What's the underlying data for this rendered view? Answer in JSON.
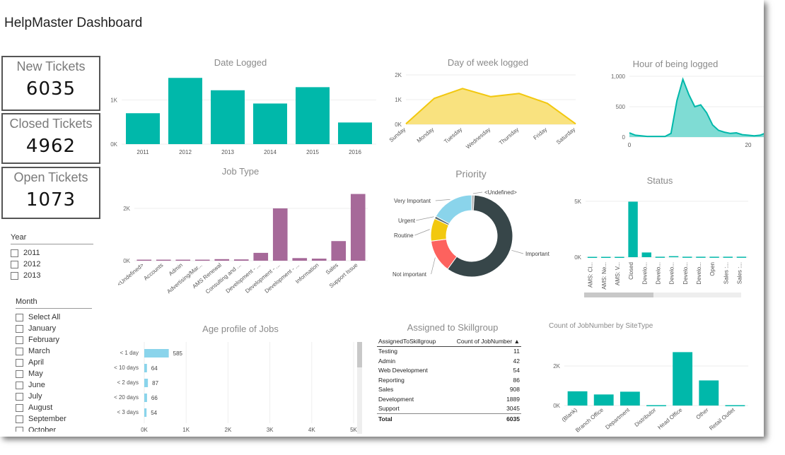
{
  "dashboard": {
    "title": "HelpMaster Dashboard"
  },
  "cards": [
    {
      "label": "New Tickets",
      "value": "6035"
    },
    {
      "label": "Closed Tickets",
      "value": "4962"
    },
    {
      "label": "Open Tickets",
      "value": "1073"
    }
  ],
  "year_slicer": {
    "title": "Year",
    "items": [
      "2011",
      "2012",
      "2013"
    ]
  },
  "month_slicer": {
    "title": "Month",
    "items": [
      "Select All",
      "January",
      "February",
      "March",
      "April",
      "May",
      "June",
      "July",
      "August",
      "September",
      "October"
    ]
  },
  "colors": {
    "teal": "#00b8aa",
    "yellow": "#f2c80f",
    "purple": "#a66999",
    "lightblue": "#8ad4eb",
    "dark": "#374649",
    "red": "#fd625e"
  },
  "chart_data": [
    {
      "id": "date_logged",
      "type": "bar",
      "title": "Date Logged",
      "categories": [
        "2011",
        "2012",
        "2013",
        "2014",
        "2015",
        "2016"
      ],
      "values": [
        700,
        1500,
        1220,
        920,
        1290,
        490
      ],
      "ylim": [
        0,
        1600
      ],
      "yticks": [
        0,
        1000
      ],
      "ytick_labels": [
        "0K",
        "1K"
      ]
    },
    {
      "id": "day_of_week",
      "type": "area",
      "title": "Day of week logged",
      "categories": [
        "Sunday",
        "Monday",
        "Tuesday",
        "Wednesday",
        "Thursday",
        "Friday",
        "Saturday"
      ],
      "values": [
        20,
        1050,
        1450,
        1120,
        1250,
        850,
        20
      ],
      "ylim": [
        0,
        2000
      ],
      "yticks": [
        0,
        1000,
        2000
      ],
      "ytick_labels": [
        "0K",
        "1K",
        "2K"
      ]
    },
    {
      "id": "hour_logged",
      "type": "area",
      "title": "Hour of being logged",
      "x": [
        0,
        1,
        2,
        3,
        4,
        5,
        6,
        7,
        8,
        9,
        10,
        11,
        12,
        13,
        14,
        15,
        16,
        17,
        18,
        19,
        20,
        21,
        22,
        23
      ],
      "values": [
        70,
        30,
        20,
        10,
        10,
        10,
        10,
        60,
        600,
        950,
        700,
        500,
        530,
        400,
        200,
        110,
        80,
        60,
        70,
        40,
        30,
        20,
        30,
        70
      ],
      "xlim": [
        0,
        25
      ],
      "xticks": [
        0,
        20
      ],
      "xtick_labels": [
        "0",
        "20"
      ],
      "ylim": [
        0,
        1000
      ],
      "yticks": [
        0,
        500,
        1000
      ],
      "ytick_labels": [
        "0",
        "500",
        "1,000"
      ]
    },
    {
      "id": "job_type",
      "type": "bar",
      "title": "Job Type",
      "categories": [
        "<Undefined>",
        "Accounts",
        "Admin",
        "Advertising/Mar...",
        "AMS Renewal",
        "Consulting and ...",
        "Development - ...",
        "Development - ...",
        "Development - ...",
        "Information",
        "Sales",
        "Support Issue"
      ],
      "values": [
        40,
        40,
        40,
        40,
        60,
        50,
        300,
        2000,
        100,
        80,
        750,
        2550
      ],
      "ylim": [
        0,
        2700
      ],
      "yticks": [
        0,
        2000
      ],
      "ytick_labels": [
        "0K",
        "2K"
      ]
    },
    {
      "id": "priority",
      "type": "pie",
      "title": "Priority",
      "labels": [
        "<Undefined>",
        "Important",
        "Not important",
        "Routine",
        "Urgent",
        "Very Important"
      ],
      "values": [
        1,
        59,
        13,
        9,
        1,
        17
      ]
    },
    {
      "id": "status",
      "type": "bar",
      "title": "Status",
      "categories": [
        "AMS: Cl...",
        "AMS: Ne...",
        "AMS: V...",
        "Closed",
        "Develo...",
        "Develo...",
        "Develo...",
        "Develo...",
        "Develo...",
        "Open",
        "Sales :...",
        "Sales :..."
      ],
      "values": [
        30,
        30,
        30,
        4962,
        420,
        40,
        90,
        40,
        40,
        40,
        40,
        40
      ],
      "ylim": [
        0,
        6000
      ],
      "yticks": [
        0,
        5000
      ],
      "ytick_labels": [
        "0K",
        "5K"
      ]
    },
    {
      "id": "age_profile",
      "type": "bar",
      "orientation": "horizontal",
      "title": "Age profile of Jobs",
      "categories": [
        "< 1 day",
        "< 10 days",
        "< 2 days",
        "< 20 days",
        "< 3 days"
      ],
      "values": [
        585,
        64,
        87,
        66,
        54
      ],
      "value_labels": [
        "585",
        "64",
        "87",
        "66",
        "54"
      ],
      "xlim": [
        0,
        5000
      ],
      "xticks": [
        0,
        1000,
        2000,
        3000,
        4000,
        5000
      ],
      "xtick_labels": [
        "0K",
        "1K",
        "2K",
        "3K",
        "4K",
        "5K"
      ]
    },
    {
      "id": "assigned_skillgroup",
      "type": "table",
      "title": "Assigned to Skillgroup",
      "columns": [
        "AssignedToSkillgroup",
        "Count of JobNumber"
      ],
      "rows": [
        [
          "Testing",
          "11"
        ],
        [
          "Admin",
          "42"
        ],
        [
          "Web Development",
          "54"
        ],
        [
          "Reporting",
          "86"
        ],
        [
          "Sales",
          "908"
        ],
        [
          "Development",
          "1889"
        ],
        [
          "Support",
          "3045"
        ]
      ],
      "total": [
        "Total",
        "6035"
      ]
    },
    {
      "id": "site_type",
      "type": "bar",
      "title": "Count of JobNumber by SiteType",
      "categories": [
        "(Blank)",
        "Branch Office",
        "Department",
        "Distributor",
        "Head Office",
        "Other",
        "Retail Outlet"
      ],
      "values": [
        720,
        560,
        700,
        20,
        2700,
        1270,
        20
      ],
      "ylim": [
        0,
        3000
      ],
      "yticks": [
        0,
        2000
      ],
      "ytick_labels": [
        "0K",
        "2K"
      ]
    }
  ]
}
